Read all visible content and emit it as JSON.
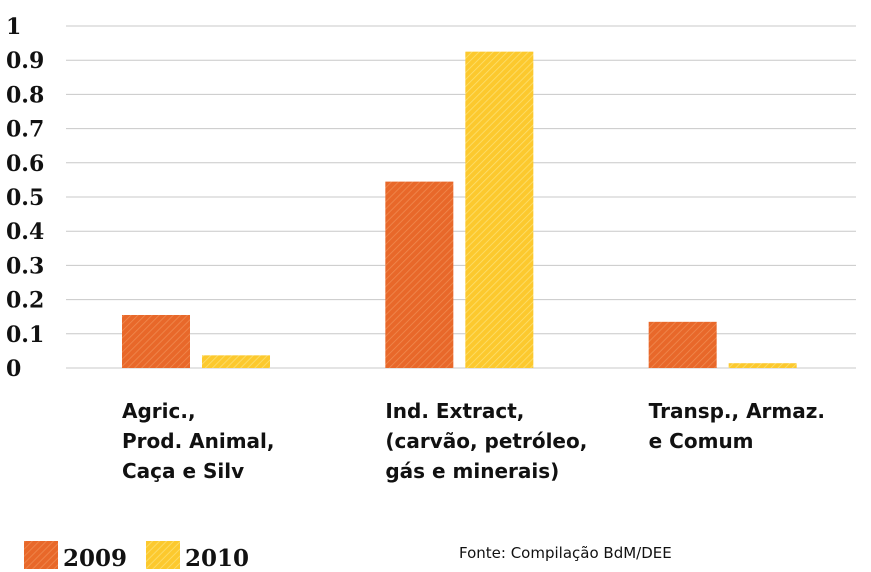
{
  "chart_data": {
    "type": "bar",
    "categories": [
      [
        "Agric.,",
        "Prod. Animal,",
        "Caça e Silv"
      ],
      [
        "Ind. Extract,",
        "(carvão, petróleo,",
        "gás e minerais)"
      ],
      [
        "Transp., Armaz.",
        "e Comum"
      ]
    ],
    "series": [
      {
        "name": "2009",
        "color": "#e8682a",
        "values": [
          0.155,
          0.545,
          0.135
        ]
      },
      {
        "name": "2010",
        "color": "#fcc92e",
        "values": [
          0.037,
          0.925,
          0.014
        ]
      }
    ],
    "ylim": [
      0,
      1
    ],
    "yticks": [
      "0",
      "0.1",
      "0.2",
      "0.3",
      "0.4",
      "0.5",
      "0.6",
      "0.7",
      "0.8",
      "0.9",
      "1"
    ],
    "grid": true,
    "legend_position": "bottom-left",
    "source": "Fonte: Compilação BdM/DEE"
  }
}
